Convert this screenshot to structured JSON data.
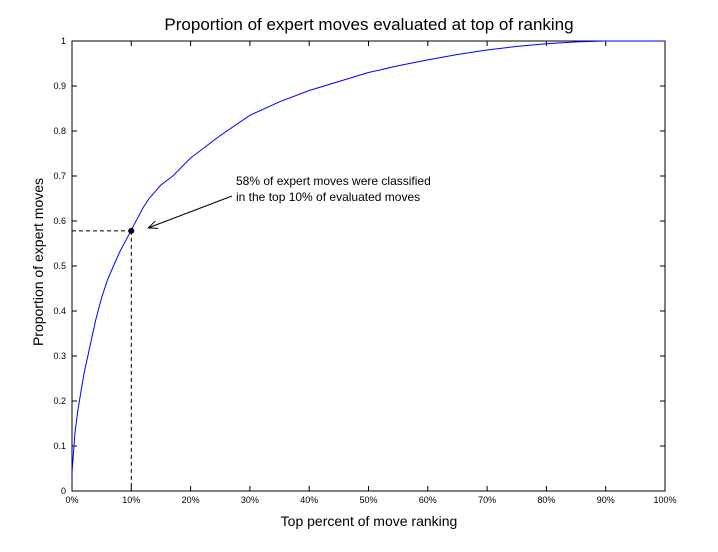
{
  "chart_data": {
    "type": "line",
    "title": "Proportion of expert moves evaluated at top of ranking",
    "xlabel": "Top percent of move ranking",
    "ylabel": "Proportion of expert moves",
    "xlim": [
      0,
      100
    ],
    "ylim": [
      0,
      1
    ],
    "xticks": [
      0,
      10,
      20,
      30,
      40,
      50,
      60,
      70,
      80,
      90,
      100
    ],
    "xtick_labels": [
      "0%",
      "10%",
      "20%",
      "30%",
      "40%",
      "50%",
      "60%",
      "70%",
      "80%",
      "90%",
      "100%"
    ],
    "yticks": [
      0,
      0.1,
      0.2,
      0.3,
      0.4,
      0.5,
      0.6,
      0.7,
      0.8,
      0.9,
      1
    ],
    "ytick_labels": [
      "0",
      "0.1",
      "0.2",
      "0.3",
      "0.4",
      "0.5",
      "0.6",
      "0.7",
      "0.8",
      "0.9",
      "1"
    ],
    "grid": false,
    "series": [
      {
        "color": "#0000ff",
        "x": [
          0,
          0.5,
          1,
          2,
          3,
          4,
          5,
          6,
          7,
          8,
          9,
          10,
          11,
          12,
          13,
          14,
          15,
          17,
          20,
          25,
          30,
          35,
          40,
          45,
          50,
          55,
          60,
          65,
          70,
          75,
          80,
          85,
          90,
          95,
          100
        ],
        "y": [
          0.04,
          0.13,
          0.18,
          0.26,
          0.32,
          0.38,
          0.43,
          0.47,
          0.5,
          0.53,
          0.555,
          0.58,
          0.605,
          0.63,
          0.65,
          0.665,
          0.68,
          0.7,
          0.74,
          0.79,
          0.835,
          0.865,
          0.89,
          0.91,
          0.93,
          0.945,
          0.958,
          0.97,
          0.98,
          0.988,
          0.994,
          0.998,
          1,
          1,
          1
        ]
      }
    ],
    "highlight_point": {
      "x": 10,
      "y": 0.578
    },
    "annotation": {
      "lines": [
        "58% of expert moves were classified",
        "in the top 10% of evaluated moves"
      ]
    }
  }
}
